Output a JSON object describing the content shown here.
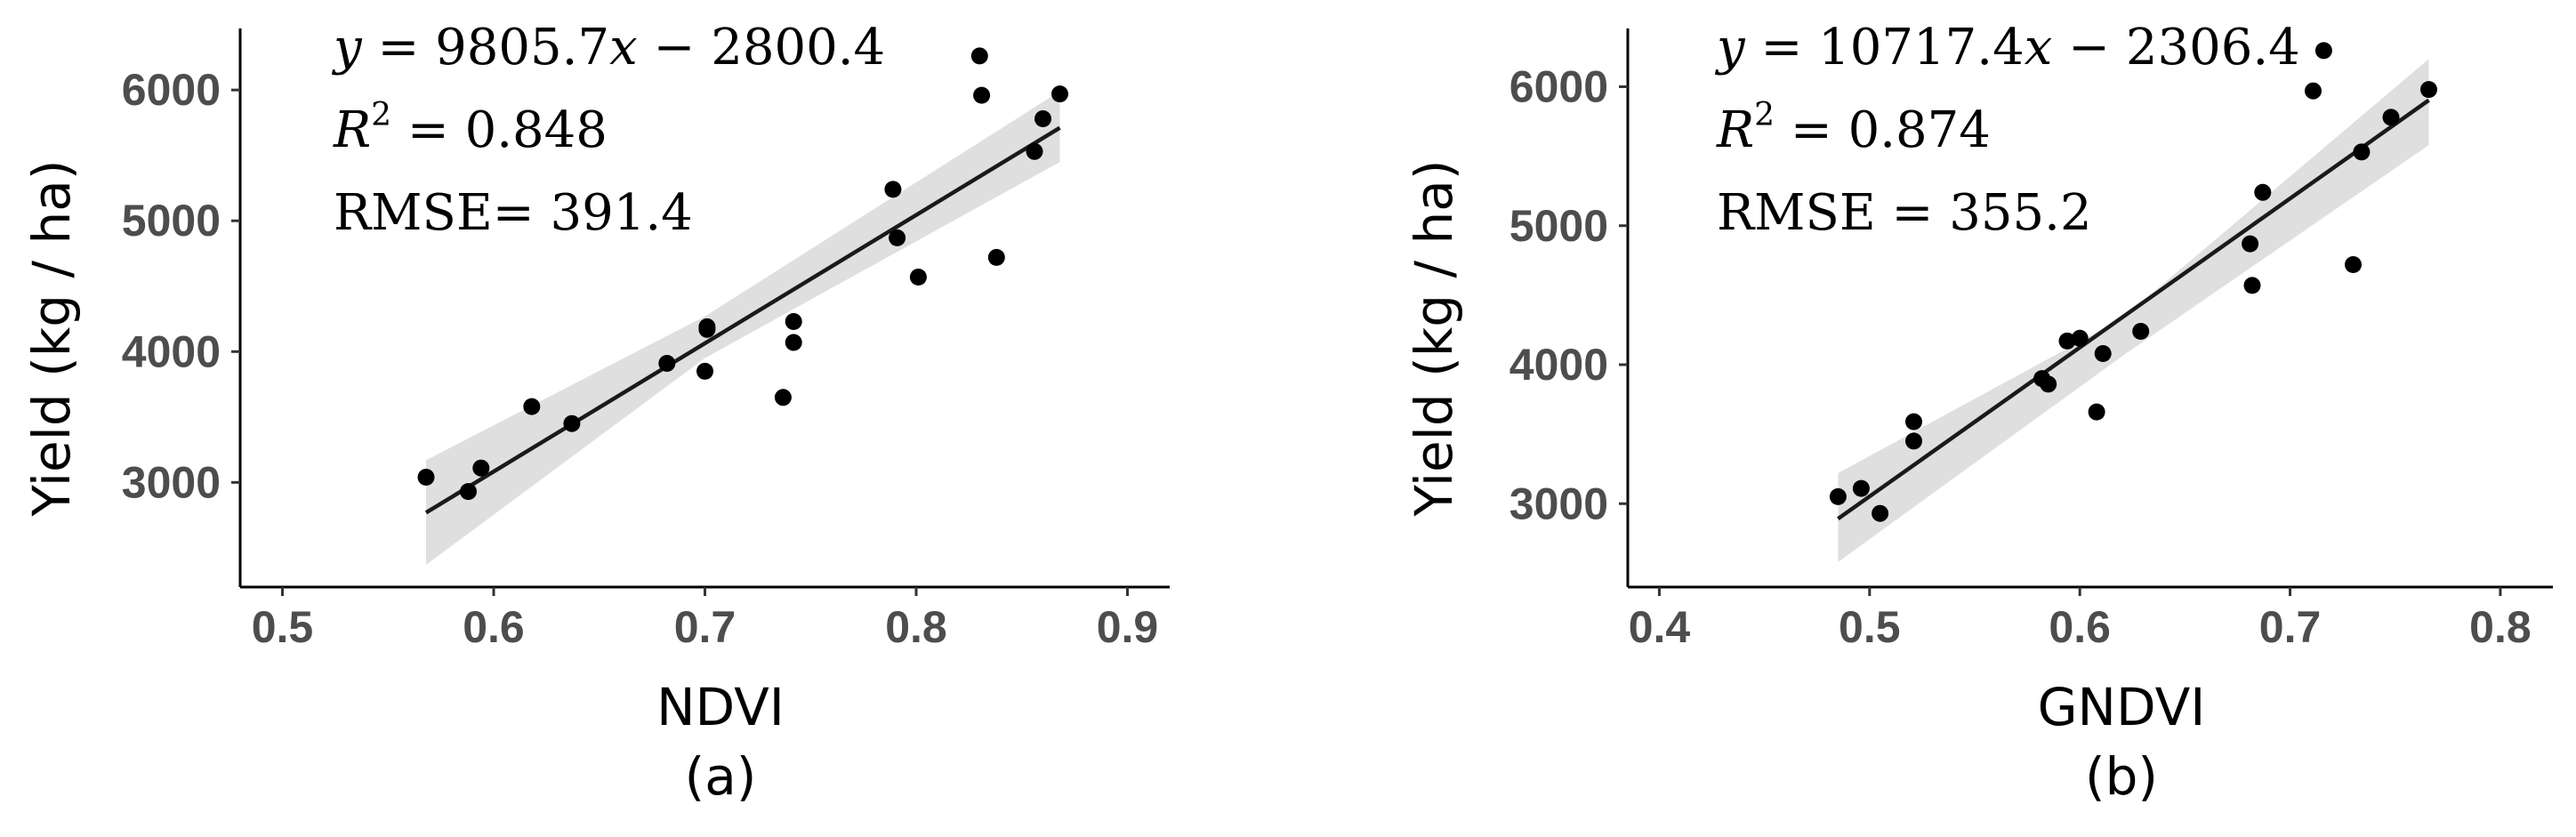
{
  "chart_data": [
    {
      "type": "scatter",
      "panel_label": "(a)",
      "xlabel": "NDVI",
      "ylabel": "Yield (kg / ha)",
      "xlim": [
        0.48,
        0.92
      ],
      "ylim": [
        2200,
        6450
      ],
      "xticks": [
        0.5,
        0.6,
        0.7,
        0.8,
        0.9
      ],
      "xtick_labels": [
        "0.5",
        "0.6",
        "0.7",
        "0.8",
        "0.9"
      ],
      "yticks": [
        3000,
        4000,
        5000,
        6000
      ],
      "ytick_labels": [
        "3000",
        "4000",
        "5000",
        "6000"
      ],
      "grid": false,
      "annotations": {
        "equation": {
          "lhs": "y",
          "rhs_a": " = 9805.7",
          "var": "x",
          "rhs_b": " − 2800.4"
        },
        "r2": {
          "prefix": "R",
          "sup": "2",
          "value": " = 0.848"
        },
        "rmse": "RMSE= 391.4"
      },
      "fit": {
        "slope": 9805.7,
        "intercept": -2800.4,
        "x_range": [
          0.568,
          0.868
        ]
      },
      "confidence_band": {
        "x": [
          0.568,
          0.7,
          0.868
        ],
        "lower": [
          2370,
          3950,
          5450
        ],
        "upper": [
          3170,
          4270,
          5990
        ]
      },
      "points": {
        "x": [
          0.568,
          0.588,
          0.594,
          0.618,
          0.637,
          0.682,
          0.7,
          0.701,
          0.701,
          0.737,
          0.742,
          0.742,
          0.789,
          0.791,
          0.801,
          0.83,
          0.831,
          0.838,
          0.856,
          0.86,
          0.868
        ],
        "y": [
          3040,
          2930,
          3110,
          3580,
          3450,
          3910,
          3850,
          4170,
          4190,
          3650,
          4230,
          4070,
          5240,
          4870,
          4570,
          6260,
          5960,
          4720,
          5530,
          5780,
          5970
        ]
      }
    },
    {
      "type": "scatter",
      "panel_label": "(b)",
      "xlabel": "GNDVI",
      "ylabel": "Yield (kg / ha)",
      "xlim": [
        0.385,
        0.825
      ],
      "ylim": [
        2400,
        6400
      ],
      "xticks": [
        0.4,
        0.5,
        0.6,
        0.7,
        0.8
      ],
      "xtick_labels": [
        "0.4",
        "0.5",
        "0.6",
        "0.7",
        "0.8"
      ],
      "yticks": [
        3000,
        4000,
        5000,
        6000
      ],
      "ytick_labels": [
        "3000",
        "4000",
        "5000",
        "6000"
      ],
      "grid": false,
      "annotations": {
        "equation": {
          "lhs": "y",
          "rhs_a": " = 10717.4",
          "var": "x",
          "rhs_b": " − 2306.4"
        },
        "r2": {
          "prefix": "R",
          "sup": "2",
          "value": " = 0.874"
        },
        "rmse": "RMSE = 355.2"
      },
      "fit": {
        "slope": 10717.4,
        "intercept": -2306.4,
        "x_range": [
          0.485,
          0.766
        ]
      },
      "confidence_band": {
        "x": [
          0.485,
          0.62,
          0.766
        ],
        "lower": [
          2580,
          4060,
          5580
        ],
        "upper": [
          3220,
          4330,
          6200
        ]
      },
      "points": {
        "x": [
          0.485,
          0.496,
          0.505,
          0.521,
          0.521,
          0.582,
          0.585,
          0.594,
          0.6,
          0.608,
          0.611,
          0.629,
          0.681,
          0.682,
          0.687,
          0.711,
          0.716,
          0.73,
          0.734,
          0.748,
          0.766
        ],
        "y": [
          3050,
          3110,
          2930,
          3590,
          3450,
          3900,
          3860,
          4170,
          4190,
          3660,
          4080,
          4240,
          4870,
          4570,
          5240,
          5970,
          6260,
          4720,
          5530,
          5780,
          5980
        ]
      }
    }
  ]
}
